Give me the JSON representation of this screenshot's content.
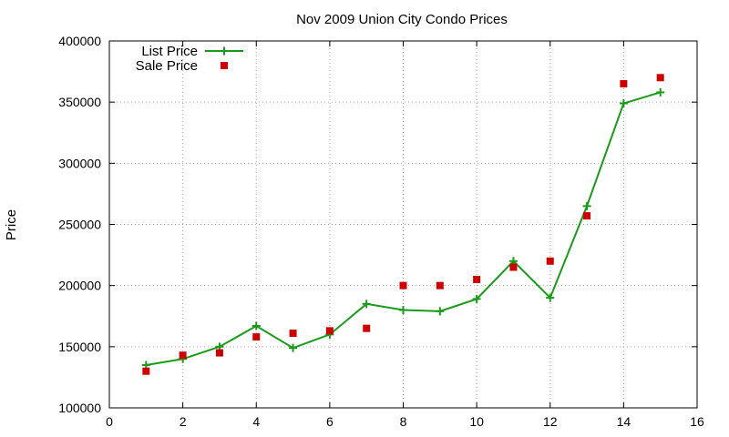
{
  "chart_data": {
    "type": "line",
    "title": "Nov 2009 Union City Condo Prices",
    "xlabel": "",
    "ylabel": "Price",
    "xlim": [
      0,
      16
    ],
    "ylim": [
      100000,
      400000
    ],
    "x_ticks": [
      0,
      2,
      4,
      6,
      8,
      10,
      12,
      14,
      16
    ],
    "y_ticks": [
      100000,
      150000,
      200000,
      250000,
      300000,
      350000,
      400000
    ],
    "grid": true,
    "legend_position": "top-left",
    "series": [
      {
        "name": "List Price",
        "style": "line-with-plus-markers",
        "color": "#1a9a1a",
        "x": [
          1,
          2,
          3,
          4,
          5,
          6,
          7,
          8,
          9,
          10,
          11,
          12,
          13,
          14,
          15
        ],
        "values": [
          135000,
          140000,
          150000,
          167000,
          149000,
          160000,
          185000,
          180000,
          179000,
          189000,
          220000,
          190000,
          265000,
          349000,
          358000
        ]
      },
      {
        "name": "Sale Price",
        "style": "square-markers",
        "color": "#cc0000",
        "x": [
          1,
          2,
          3,
          4,
          5,
          6,
          7,
          8,
          9,
          10,
          11,
          12,
          13,
          14,
          15
        ],
        "values": [
          130000,
          143000,
          145000,
          158000,
          161000,
          163000,
          165000,
          200000,
          200000,
          205000,
          215000,
          220000,
          257000,
          365000,
          370000
        ]
      }
    ]
  }
}
